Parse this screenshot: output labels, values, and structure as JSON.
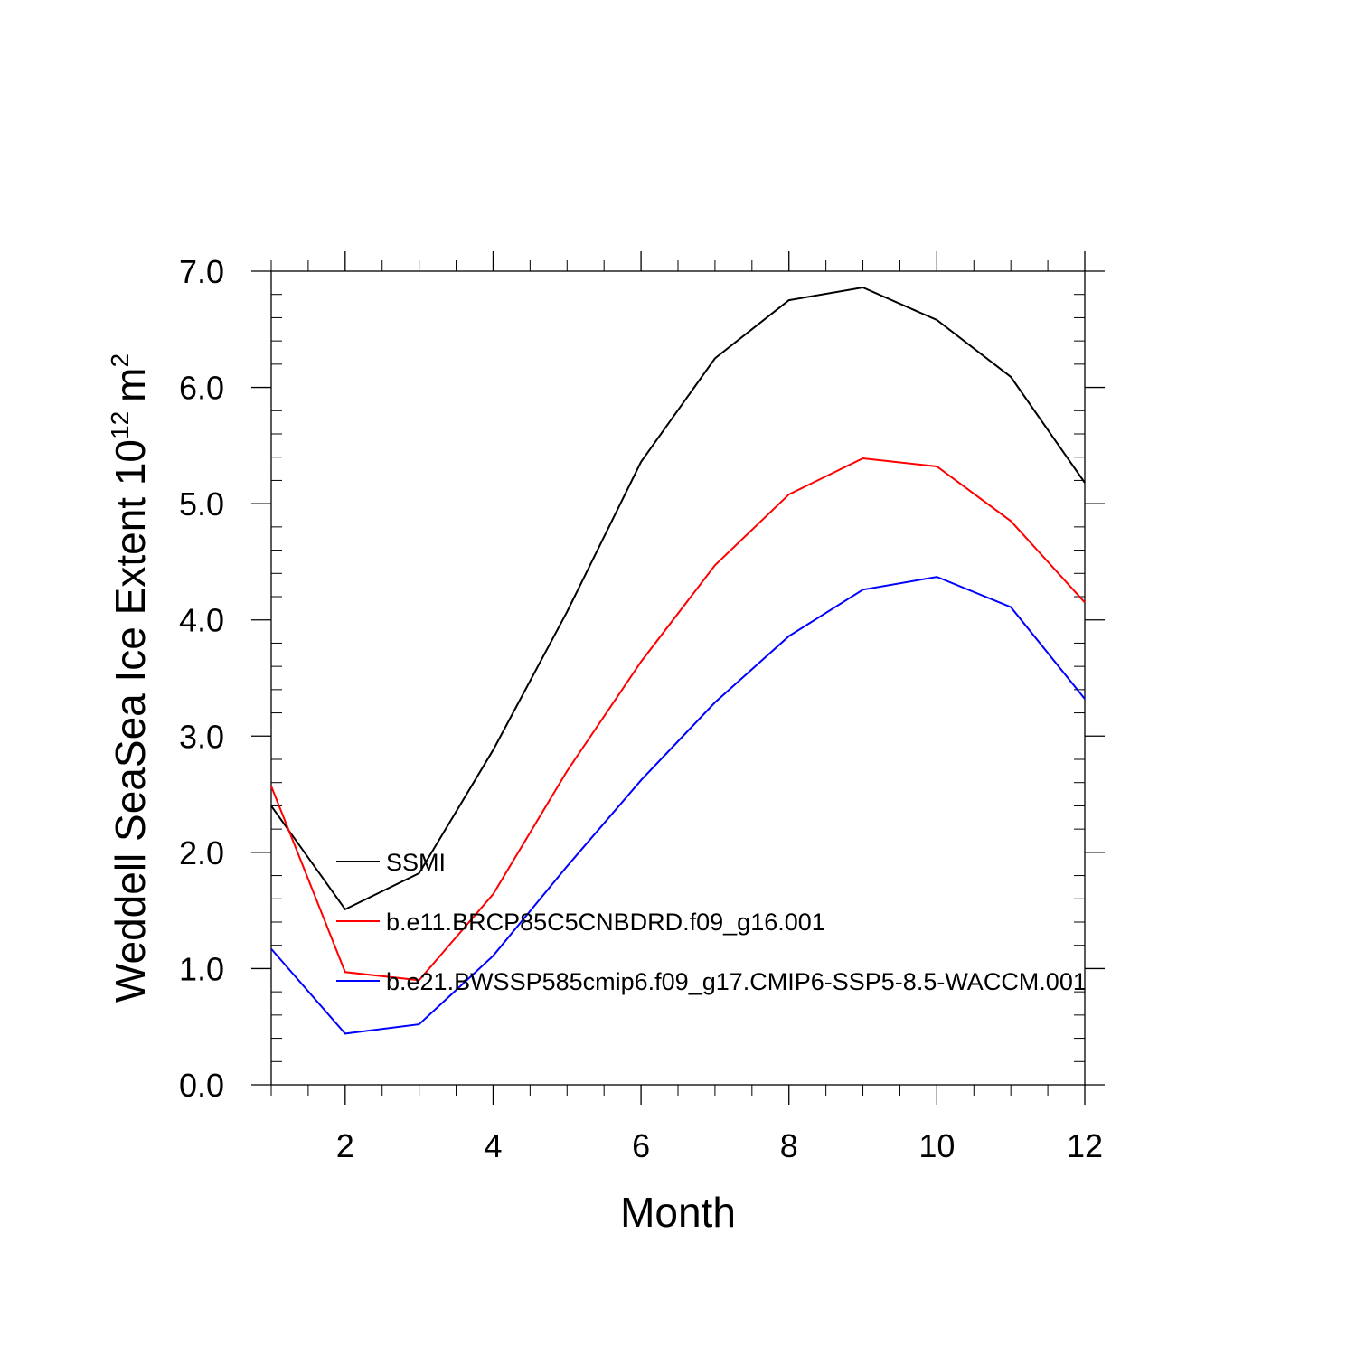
{
  "chart_data": {
    "type": "line",
    "title": "",
    "xlabel": "Month",
    "ylabel_main": "Weddell SeaSea Ice Extent 10",
    "ylabel_exp": "12",
    "ylabel_unit": "m",
    "ylabel_unit_exp": "2",
    "xlim": [
      1,
      12
    ],
    "ylim": [
      0.0,
      7.0
    ],
    "xticks": [
      2,
      4,
      6,
      8,
      10,
      12
    ],
    "xtick_labels": [
      "2",
      "4",
      "6",
      "8",
      "10",
      "12"
    ],
    "yticks": [
      0,
      1,
      2,
      3,
      4,
      5,
      6,
      7
    ],
    "ytick_labels": [
      "0.0",
      "1.0",
      "2.0",
      "3.0",
      "4.0",
      "5.0",
      "6.0",
      "7.0"
    ],
    "x": [
      1,
      2,
      3,
      4,
      5,
      6,
      7,
      8,
      9,
      10,
      11,
      12
    ],
    "series": [
      {
        "name": "SSMI",
        "color": "#000000",
        "values": [
          2.4,
          1.51,
          1.82,
          2.88,
          4.07,
          5.36,
          6.25,
          6.75,
          6.86,
          6.58,
          6.09,
          5.18
        ]
      },
      {
        "name": "b.e11.BRCP85C5CNBDRD.f09_g16.001",
        "color": "#ff0000",
        "values": [
          2.57,
          0.97,
          0.9,
          1.64,
          2.7,
          3.64,
          4.47,
          5.08,
          5.39,
          5.32,
          4.85,
          4.15
        ]
      },
      {
        "name": "b.e21.BWSSP585cmip6.f09_g17.CMIP6-SSP5-8.5-WACCM.001",
        "color": "#0000ff",
        "values": [
          1.17,
          0.44,
          0.52,
          1.11,
          1.88,
          2.62,
          3.29,
          3.86,
          4.26,
          4.37,
          4.11,
          3.32
        ]
      }
    ],
    "legend_location": "lower-left"
  }
}
